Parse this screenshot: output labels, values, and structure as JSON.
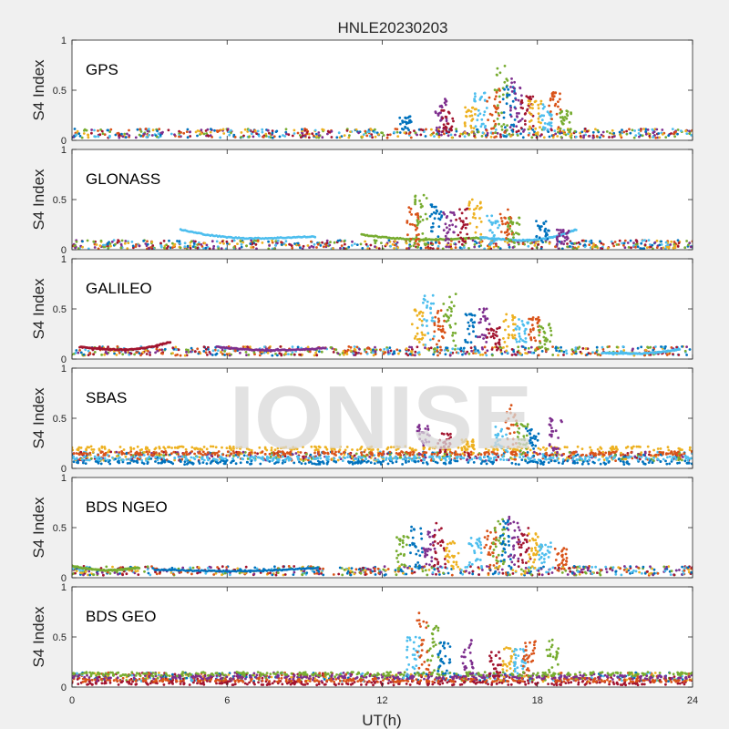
{
  "figure": {
    "title": "HNLE20230203",
    "xlabel": "UT(h)",
    "watermark": "IONISE"
  },
  "colors": [
    "#0072bd",
    "#d95319",
    "#edb120",
    "#7e2f8e",
    "#77ac30",
    "#4dbeee",
    "#a2142f"
  ],
  "chart_data": [
    {
      "type": "scatter",
      "name": "GPS",
      "ylabel": "S4 Index",
      "xlim": [
        0,
        24
      ],
      "ylim": [
        0,
        1
      ],
      "xticks": [
        0,
        6,
        12,
        18,
        24
      ],
      "yticks": [
        0,
        0.5,
        1
      ],
      "grid": false,
      "baseline": 0.07,
      "spikes": [
        {
          "x": 12.9,
          "peak": 0.25
        },
        {
          "x": 14.3,
          "peak": 0.42
        },
        {
          "x": 14.5,
          "peak": 0.3
        },
        {
          "x": 15.4,
          "peak": 0.35
        },
        {
          "x": 15.8,
          "peak": 0.48
        },
        {
          "x": 16.3,
          "peak": 0.6
        },
        {
          "x": 16.6,
          "peak": 0.75
        },
        {
          "x": 16.9,
          "peak": 0.55
        },
        {
          "x": 17.2,
          "peak": 0.62
        },
        {
          "x": 17.6,
          "peak": 0.45
        },
        {
          "x": 17.9,
          "peak": 0.4
        },
        {
          "x": 18.3,
          "peak": 0.38
        },
        {
          "x": 18.7,
          "peak": 0.48
        },
        {
          "x": 19.1,
          "peak": 0.3
        }
      ]
    },
    {
      "type": "scatter",
      "name": "GLONASS",
      "ylabel": "S4 Index",
      "xlim": [
        0,
        24
      ],
      "ylim": [
        0,
        1
      ],
      "xticks": [
        0,
        6,
        12,
        18,
        24
      ],
      "yticks": [
        0,
        0.5,
        1
      ],
      "grid": false,
      "baseline": 0.05,
      "spikes": [
        {
          "x": 13.2,
          "peak": 0.45
        },
        {
          "x": 13.5,
          "peak": 0.57
        },
        {
          "x": 14.1,
          "peak": 0.45
        },
        {
          "x": 14.6,
          "peak": 0.38
        },
        {
          "x": 15.1,
          "peak": 0.42
        },
        {
          "x": 15.6,
          "peak": 0.5
        },
        {
          "x": 16.3,
          "peak": 0.35
        },
        {
          "x": 16.8,
          "peak": 0.4
        },
        {
          "x": 17.1,
          "peak": 0.32
        },
        {
          "x": 18.2,
          "peak": 0.3
        },
        {
          "x": 19.0,
          "peak": 0.2
        }
      ],
      "arcs": [
        {
          "x0": 4.2,
          "x1": 9.4,
          "y0": 0.2,
          "y1": 0.13,
          "ymin": 0.08,
          "color": 5
        },
        {
          "x0": 11.2,
          "x1": 16.0,
          "y0": 0.15,
          "y1": 0.12,
          "ymin": 0.08,
          "color": 4
        },
        {
          "x0": 15.8,
          "x1": 19.5,
          "y0": 0.12,
          "y1": 0.2,
          "ymin": 0.05,
          "color": 5
        }
      ]
    },
    {
      "type": "scatter",
      "name": "GALILEO",
      "ylabel": "S4 Index",
      "xlim": [
        0,
        24
      ],
      "ylim": [
        0,
        1
      ],
      "xticks": [
        0,
        6,
        12,
        18,
        24
      ],
      "yticks": [
        0,
        0.5,
        1
      ],
      "grid": false,
      "baseline": 0.08,
      "spikes": [
        {
          "x": 13.4,
          "peak": 0.5
        },
        {
          "x": 13.8,
          "peak": 0.67
        },
        {
          "x": 14.2,
          "peak": 0.5
        },
        {
          "x": 14.6,
          "peak": 0.65
        },
        {
          "x": 15.4,
          "peak": 0.45
        },
        {
          "x": 15.9,
          "peak": 0.52
        },
        {
          "x": 16.3,
          "peak": 0.35
        },
        {
          "x": 16.9,
          "peak": 0.45
        },
        {
          "x": 17.4,
          "peak": 0.4
        },
        {
          "x": 17.9,
          "peak": 0.42
        },
        {
          "x": 18.3,
          "peak": 0.35
        }
      ],
      "arcs": [
        {
          "x0": 0.3,
          "x1": 3.8,
          "y0": 0.12,
          "y1": 0.17,
          "ymin": 0.06,
          "color": 6
        },
        {
          "x0": 5.6,
          "x1": 9.8,
          "y0": 0.12,
          "y1": 0.11,
          "ymin": 0.07,
          "color": 3
        },
        {
          "x0": 20.5,
          "x1": 23.5,
          "y0": 0.06,
          "y1": 0.1,
          "ymin": 0.04,
          "color": 5
        }
      ]
    },
    {
      "type": "scatter",
      "name": "SBAS",
      "ylabel": "S4 Index",
      "xlim": [
        0,
        24
      ],
      "ylim": [
        0,
        1
      ],
      "xticks": [
        0,
        6,
        12,
        18,
        24
      ],
      "yticks": [
        0,
        0.5,
        1
      ],
      "grid": false,
      "baseline": 0.12,
      "bands": [
        {
          "y": 0.06,
          "color": 0
        },
        {
          "y": 0.1,
          "color": 5
        },
        {
          "y": 0.15,
          "color": 1
        },
        {
          "y": 0.2,
          "color": 2
        }
      ],
      "spikes": [
        {
          "x": 13.6,
          "peak": 0.48
        },
        {
          "x": 14.4,
          "peak": 0.35
        },
        {
          "x": 15.3,
          "peak": 0.3
        },
        {
          "x": 16.6,
          "peak": 0.42
        },
        {
          "x": 17.0,
          "peak": 0.65
        },
        {
          "x": 17.4,
          "peak": 0.45
        },
        {
          "x": 17.8,
          "peak": 0.4
        },
        {
          "x": 18.7,
          "peak": 0.52
        }
      ]
    },
    {
      "type": "scatter",
      "name": "BDS NGEO",
      "ylabel": "S4 Index",
      "xlim": [
        0,
        24
      ],
      "ylim": [
        0,
        1
      ],
      "xticks": [
        0,
        6,
        12,
        18,
        24
      ],
      "yticks": [
        0,
        0.5,
        1
      ],
      "grid": false,
      "baseline": 0.07,
      "spikes": [
        {
          "x": 12.8,
          "peak": 0.45
        },
        {
          "x": 13.3,
          "peak": 0.53
        },
        {
          "x": 13.8,
          "peak": 0.48
        },
        {
          "x": 14.2,
          "peak": 0.55
        },
        {
          "x": 14.7,
          "peak": 0.38
        },
        {
          "x": 15.6,
          "peak": 0.4
        },
        {
          "x": 16.2,
          "peak": 0.55
        },
        {
          "x": 16.5,
          "peak": 0.6
        },
        {
          "x": 16.8,
          "peak": 0.58
        },
        {
          "x": 17.1,
          "peak": 0.62
        },
        {
          "x": 17.5,
          "peak": 0.5
        },
        {
          "x": 17.9,
          "peak": 0.45
        },
        {
          "x": 18.3,
          "peak": 0.35
        },
        {
          "x": 18.9,
          "peak": 0.3
        }
      ],
      "arcs": [
        {
          "x0": 0.0,
          "x1": 2.6,
          "y0": 0.12,
          "y1": 0.1,
          "ymin": 0.05,
          "color": 4
        },
        {
          "x0": 3.2,
          "x1": 9.5,
          "y0": 0.08,
          "y1": 0.1,
          "ymin": 0.05,
          "color": 0
        }
      ]
    },
    {
      "type": "scatter",
      "name": "BDS GEO",
      "ylabel": "S4 Index",
      "xlim": [
        0,
        24
      ],
      "ylim": [
        0,
        1
      ],
      "xticks": [
        0,
        6,
        12,
        18,
        24
      ],
      "yticks": [
        0,
        0.5,
        1
      ],
      "grid": false,
      "baseline": 0.1,
      "bands": [
        {
          "y": 0.04,
          "color": 6
        },
        {
          "y": 0.07,
          "color": 1
        },
        {
          "y": 0.1,
          "color": 3
        },
        {
          "y": 0.13,
          "color": 4
        }
      ],
      "spikes": [
        {
          "x": 13.2,
          "peak": 0.5
        },
        {
          "x": 13.6,
          "peak": 0.75
        },
        {
          "x": 14.0,
          "peak": 0.62
        },
        {
          "x": 14.4,
          "peak": 0.45
        },
        {
          "x": 15.3,
          "peak": 0.5
        },
        {
          "x": 16.4,
          "peak": 0.35
        },
        {
          "x": 16.9,
          "peak": 0.4
        },
        {
          "x": 17.3,
          "peak": 0.38
        },
        {
          "x": 17.7,
          "peak": 0.48
        },
        {
          "x": 18.6,
          "peak": 0.48
        }
      ]
    }
  ]
}
